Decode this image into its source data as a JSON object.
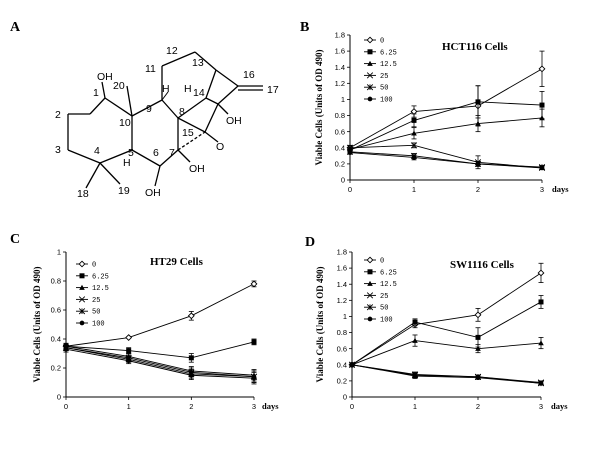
{
  "panels": {
    "A": "A",
    "B": "B",
    "C": "C",
    "D": "D"
  },
  "structure": {
    "atoms": [
      {
        "id": "1",
        "text": "1"
      },
      {
        "id": "2",
        "text": "2"
      },
      {
        "id": "3",
        "text": "3"
      },
      {
        "id": "4",
        "text": "4"
      },
      {
        "id": "5",
        "text": "5"
      },
      {
        "id": "6",
        "text": "6"
      },
      {
        "id": "7",
        "text": "7"
      },
      {
        "id": "8",
        "text": "8"
      },
      {
        "id": "9",
        "text": "9"
      },
      {
        "id": "10",
        "text": "10"
      },
      {
        "id": "11",
        "text": "11"
      },
      {
        "id": "12",
        "text": "12"
      },
      {
        "id": "13",
        "text": "13"
      },
      {
        "id": "14",
        "text": "14"
      },
      {
        "id": "15",
        "text": "15"
      },
      {
        "id": "16",
        "text": "16"
      },
      {
        "id": "17",
        "text": "17"
      },
      {
        "id": "18",
        "text": "18"
      },
      {
        "id": "19",
        "text": "19"
      },
      {
        "id": "20",
        "text": "20"
      },
      {
        "id": "OH1",
        "text": "OH"
      },
      {
        "id": "OH14",
        "text": "OH"
      },
      {
        "id": "OH7",
        "text": "OH"
      },
      {
        "id": "OH6",
        "text": "OH"
      },
      {
        "id": "O",
        "text": "O"
      },
      {
        "id": "H9",
        "text": "H"
      },
      {
        "id": "H5",
        "text": "H"
      },
      {
        "id": "H8",
        "text": "H"
      }
    ]
  },
  "chart_data": [
    {
      "type": "line",
      "title": "HCT116 Cells",
      "ylabel": "Viable Cells (Units of OD 490)",
      "xlabel": "days",
      "x": [
        0,
        1,
        2,
        3
      ],
      "x_ticks": [
        "0",
        "1",
        "2",
        "3"
      ],
      "ylim": [
        0,
        1.8
      ],
      "y_ticks": [
        "0",
        "0.2",
        "0.4",
        "0.6",
        "0.8",
        "1",
        "1.2",
        "1.4",
        "1.6",
        "1.8"
      ],
      "legend_position": "top-left",
      "series": [
        {
          "name": "0",
          "marker": "diamond-open",
          "values": [
            0.4,
            0.85,
            0.92,
            1.38
          ],
          "errors": [
            0.03,
            0.07,
            0.25,
            0.22
          ]
        },
        {
          "name": "6.25",
          "marker": "square",
          "values": [
            0.37,
            0.74,
            0.97,
            0.93
          ],
          "errors": [
            0.03,
            0.08,
            0.2,
            0.17
          ]
        },
        {
          "name": "12.5",
          "marker": "triangle",
          "values": [
            0.38,
            0.58,
            0.7,
            0.77
          ],
          "errors": [
            0.03,
            0.07,
            0.1,
            0.11
          ]
        },
        {
          "name": "25",
          "marker": "x",
          "values": [
            0.4,
            0.43,
            0.22,
            0.15
          ],
          "errors": [
            0.03,
            0.03,
            0.08,
            0.02
          ]
        },
        {
          "name": "50",
          "marker": "star",
          "values": [
            0.35,
            0.3,
            0.2,
            0.16
          ],
          "errors": [
            0.02,
            0.03,
            0.03,
            0.02
          ]
        },
        {
          "name": "100",
          "marker": "circle",
          "values": [
            0.34,
            0.28,
            0.2,
            0.15
          ],
          "errors": [
            0.02,
            0.03,
            0.03,
            0.02
          ]
        }
      ]
    },
    {
      "type": "line",
      "title": "HT29 Cells",
      "ylabel": "Viable Cells (Units of OD 490)",
      "xlabel": "days",
      "x": [
        0,
        1,
        2,
        3
      ],
      "x_ticks": [
        "0",
        "1",
        "2",
        "3"
      ],
      "ylim": [
        0,
        1.0
      ],
      "y_ticks": [
        "0",
        "0.2",
        "0.4",
        "0.6",
        "0.8",
        "1"
      ],
      "legend_position": "top-left",
      "series": [
        {
          "name": "0",
          "marker": "diamond-open",
          "values": [
            0.35,
            0.41,
            0.56,
            0.78
          ],
          "errors": [
            0.02,
            0.01,
            0.03,
            0.02
          ]
        },
        {
          "name": "6.25",
          "marker": "square",
          "values": [
            0.35,
            0.32,
            0.27,
            0.38
          ],
          "errors": [
            0.02,
            0.02,
            0.03,
            0.02
          ]
        },
        {
          "name": "12.5",
          "marker": "triangle",
          "values": [
            0.35,
            0.28,
            0.18,
            0.15
          ],
          "errors": [
            0.02,
            0.02,
            0.03,
            0.04
          ]
        },
        {
          "name": "25",
          "marker": "x",
          "values": [
            0.34,
            0.27,
            0.17,
            0.14
          ],
          "errors": [
            0.02,
            0.02,
            0.03,
            0.04
          ]
        },
        {
          "name": "50",
          "marker": "star",
          "values": [
            0.34,
            0.26,
            0.16,
            0.14
          ],
          "errors": [
            0.02,
            0.02,
            0.03,
            0.04
          ]
        },
        {
          "name": "100",
          "marker": "circle",
          "values": [
            0.33,
            0.25,
            0.15,
            0.13
          ],
          "errors": [
            0.02,
            0.02,
            0.03,
            0.04
          ]
        }
      ]
    },
    {
      "type": "line",
      "title": "SW1116 Cells",
      "ylabel": "Viable Cells (Units of OD 490)",
      "xlabel": "days",
      "x": [
        0,
        1,
        2,
        3
      ],
      "x_ticks": [
        "0",
        "1",
        "2",
        "3"
      ],
      "ylim": [
        0,
        1.8
      ],
      "y_ticks": [
        "0",
        "0.2",
        "0.4",
        "0.6",
        "0.8",
        "1",
        "1.2",
        "1.4",
        "1.6",
        "1.8"
      ],
      "legend_position": "top-left",
      "series": [
        {
          "name": "0",
          "marker": "diamond-open",
          "values": [
            0.4,
            0.9,
            1.02,
            1.54
          ],
          "errors": [
            0.02,
            0.04,
            0.08,
            0.12
          ]
        },
        {
          "name": "6.25",
          "marker": "square",
          "values": [
            0.4,
            0.93,
            0.74,
            1.18
          ],
          "errors": [
            0.02,
            0.04,
            0.12,
            0.08
          ]
        },
        {
          "name": "12.5",
          "marker": "triangle",
          "values": [
            0.4,
            0.7,
            0.6,
            0.67
          ],
          "errors": [
            0.02,
            0.07,
            0.05,
            0.07
          ]
        },
        {
          "name": "25",
          "marker": "x",
          "values": [
            0.4,
            0.28,
            0.25,
            0.18
          ],
          "errors": [
            0.02,
            0.03,
            0.02,
            0.02
          ]
        },
        {
          "name": "50",
          "marker": "star",
          "values": [
            0.4,
            0.27,
            0.25,
            0.17
          ],
          "errors": [
            0.02,
            0.03,
            0.02,
            0.02
          ]
        },
        {
          "name": "100",
          "marker": "circle",
          "values": [
            0.4,
            0.26,
            0.24,
            0.17
          ],
          "errors": [
            0.02,
            0.03,
            0.02,
            0.02
          ]
        }
      ]
    }
  ]
}
